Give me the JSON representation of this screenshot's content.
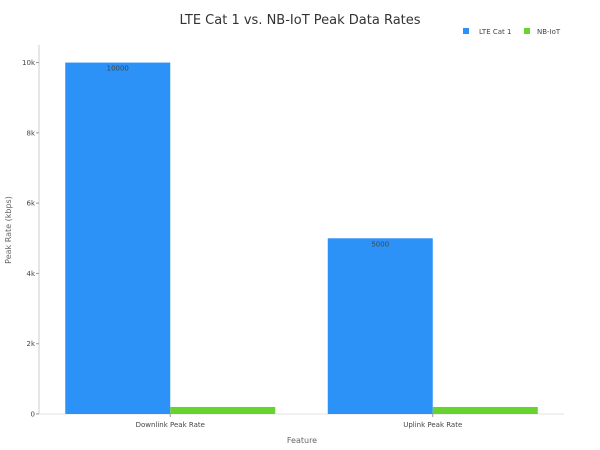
{
  "chart_data": {
    "type": "bar",
    "title": "LTE Cat 1 vs. NB-IoT Peak Data Rates",
    "xlabel": "Feature",
    "ylabel": "Peak Rate (kbps)",
    "categories": [
      "Downlink Peak Rate",
      "Uplink Peak Rate"
    ],
    "series": [
      {
        "name": "LTE Cat 1",
        "values": [
          10000,
          5000
        ],
        "color": "#2d92f7",
        "labels": [
          "10000",
          "5000"
        ]
      },
      {
        "name": "NB-IoT",
        "values": [
          200,
          200
        ],
        "color": "#67d32f",
        "labels": [
          "",
          ""
        ]
      }
    ],
    "ylim": [
      0,
      10500
    ],
    "yticks": [
      0,
      2000,
      4000,
      6000,
      8000,
      10000
    ],
    "ytick_labels": [
      "0",
      "2k",
      "4k",
      "6k",
      "8k",
      "10k"
    ],
    "legend_position": "top-right",
    "grid": false
  }
}
